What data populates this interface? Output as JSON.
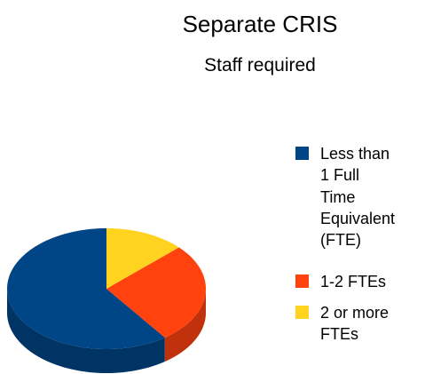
{
  "chart_data": {
    "type": "pie3d",
    "title": "Separate CRIS",
    "subtitle": "Staff required",
    "categories": [
      "Less than 1 Full Time Equivalent (FTE)",
      "1-2 FTEs",
      "2 or more FTEs"
    ],
    "values": [
      60,
      27,
      13
    ],
    "colors": [
      "#004586",
      "#ff420e",
      "#ffd320"
    ]
  }
}
